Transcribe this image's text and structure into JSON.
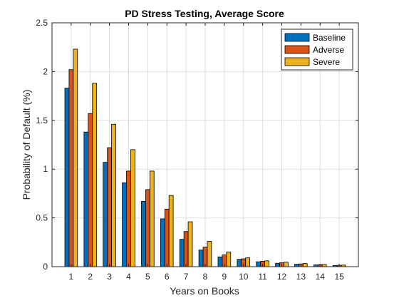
{
  "chart_data": {
    "type": "bar",
    "title": "PD Stress Testing, Average Score",
    "xlabel": "Years on Books",
    "ylabel": "Probability of Default (%)",
    "categories": [
      "1",
      "2",
      "3",
      "4",
      "5",
      "6",
      "7",
      "8",
      "9",
      "10",
      "11",
      "12",
      "13",
      "14",
      "15"
    ],
    "ylim": [
      0,
      2.5
    ],
    "yticks": [
      "0",
      "0.5",
      "1",
      "1.5",
      "2",
      "2.5"
    ],
    "grid": true,
    "legend_position": "top-right",
    "series": [
      {
        "name": "Baseline",
        "color": "#0072BD",
        "values": [
          1.83,
          1.38,
          1.07,
          0.86,
          0.67,
          0.49,
          0.28,
          0.17,
          0.1,
          0.075,
          0.05,
          0.035,
          0.025,
          0.018,
          0.012
        ]
      },
      {
        "name": "Adverse",
        "color": "#D95319",
        "values": [
          2.02,
          1.57,
          1.22,
          0.98,
          0.79,
          0.59,
          0.36,
          0.2,
          0.12,
          0.08,
          0.055,
          0.04,
          0.028,
          0.02,
          0.014
        ]
      },
      {
        "name": "Severe",
        "color": "#EDB120",
        "values": [
          2.23,
          1.88,
          1.46,
          1.2,
          0.98,
          0.73,
          0.46,
          0.26,
          0.15,
          0.09,
          0.06,
          0.045,
          0.032,
          0.022,
          0.016
        ]
      }
    ]
  }
}
